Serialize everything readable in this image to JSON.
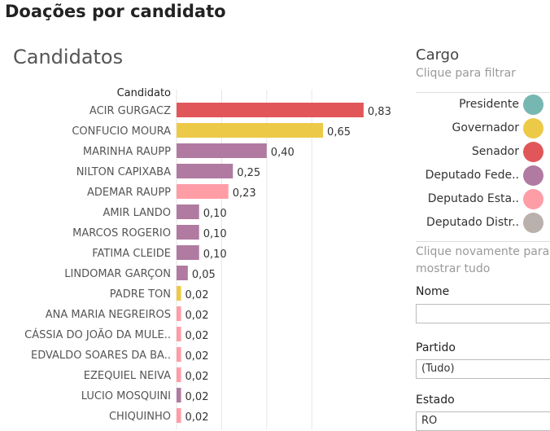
{
  "page": {
    "title": "Doações por candidato"
  },
  "chart_data": {
    "type": "bar",
    "orientation": "horizontal",
    "title": "Candidatos",
    "category_header": "Candidato",
    "categories": [
      "ACIR GURGACZ",
      "CONFUCIO MOURA",
      "MARINHA RAUPP",
      "NILTON CAPIXABA",
      "ADEMAR RAUPP",
      "AMIR LANDO",
      "MARCOS ROGERIO",
      "FATIMA CLEIDE",
      "LINDOMAR GARÇON",
      "PADRE TON",
      "ANA MARIA NEGREIROS",
      "CÁSSIA DO JOÃO DA MULE..",
      "EDVALDO SOARES DA BA..",
      "EZEQUIEL NEIVA",
      "LUCIO MOSQUINI",
      "CHIQUINHO"
    ],
    "values": [
      0.83,
      0.65,
      0.4,
      0.25,
      0.23,
      0.1,
      0.1,
      0.1,
      0.05,
      0.02,
      0.02,
      0.02,
      0.02,
      0.02,
      0.02,
      0.02
    ],
    "value_labels": [
      "0,83",
      "0,65",
      "0,40",
      "0,25",
      "0,23",
      "0,10",
      "0,10",
      "0,10",
      "0,05",
      "0,02",
      "0,02",
      "0,02",
      "0,02",
      "0,02",
      "0,02",
      "0,02"
    ],
    "cargo": [
      "Senador",
      "Governador",
      "Deputado Federal",
      "Deputado Federal",
      "Deputado Estadual",
      "Deputado Federal",
      "Deputado Federal",
      "Deputado Federal",
      "Deputado Federal",
      "Governador",
      "Deputado Estadual",
      "Deputado Estadual",
      "Deputado Estadual",
      "Deputado Estadual",
      "Deputado Federal",
      "Deputado Estadual"
    ],
    "xlim": [
      0,
      1
    ],
    "grid": true
  },
  "legend": {
    "title": "Cargo",
    "hint": "Clique para filtrar",
    "items": [
      {
        "label": "Presidente",
        "key": "Presidente",
        "color": "#76b7b2"
      },
      {
        "label": "Governador",
        "key": "Governador",
        "color": "#edc948"
      },
      {
        "label": "Senador",
        "key": "Senador",
        "color": "#e15759"
      },
      {
        "label": "Deputado Fede..",
        "key": "Deputado Federal",
        "color": "#b07aa1"
      },
      {
        "label": "Deputado Esta..",
        "key": "Deputado Estadual",
        "color": "#ff9da7"
      },
      {
        "label": "Deputado Distr..",
        "key": "Deputado Distrital",
        "color": "#bab0ac"
      }
    ],
    "reset_hint": "Clique novamente para mostrar tudo"
  },
  "filters": {
    "nome": {
      "label": "Nome",
      "value": ""
    },
    "partido": {
      "label": "Partido",
      "value": "(Tudo)"
    },
    "estado": {
      "label": "Estado",
      "value": "RO"
    }
  }
}
